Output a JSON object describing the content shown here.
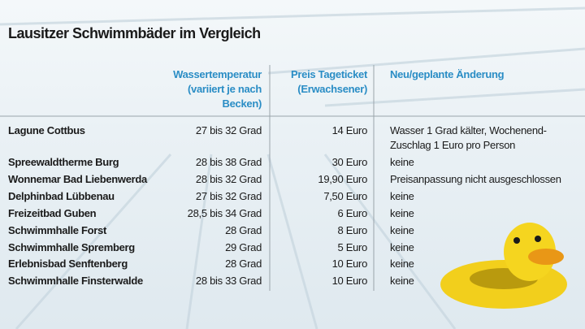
{
  "title": "Lausitzer Schwimmbäder im Vergleich",
  "table": {
    "header": [
      {
        "lines": [
          "Wassertemperatur",
          "(variiert je nach",
          "Becken)"
        ]
      },
      {
        "lines": [
          "Preis Tageticket",
          "(Erwachsener)"
        ]
      },
      {
        "lines": [
          "Neu/geplante Änderung"
        ]
      }
    ],
    "rows": [
      {
        "name": "Lagune Cottbus",
        "temperature": "27 bis 32 Grad",
        "price": "14 Euro",
        "change": [
          "Wasser 1 Grad kälter, Wochenend-",
          "Zuschlag 1 Euro pro Person"
        ]
      },
      {
        "name": "Spreewaldtherme Burg",
        "temperature": "28 bis 38 Grad",
        "price": "30 Euro",
        "change": [
          "keine"
        ]
      },
      {
        "name": "Wonnemar Bad Liebenwerda",
        "temperature": "28 bis 32 Grad",
        "price": "19,90 Euro",
        "change": [
          "Preisanpassung  nicht ausgeschlossen"
        ]
      },
      {
        "name": "Delphinbad Lübbenau",
        "temperature": "27 bis 32 Grad",
        "price": "7,50 Euro",
        "change": [
          "keine"
        ]
      },
      {
        "name": "Freizeitbad Guben",
        "temperature": "28,5 bis 34 Grad",
        "price": "6 Euro",
        "change": [
          "keine"
        ]
      },
      {
        "name": "Schwimmhalle Forst",
        "temperature": "28 Grad",
        "price": "8 Euro",
        "change": [
          "keine"
        ]
      },
      {
        "name": "Schwimmhalle Spremberg",
        "temperature": "29 Grad",
        "price": "5 Euro",
        "change": [
          "keine"
        ]
      },
      {
        "name": "Erlebnisbad Senftenberg",
        "temperature": "28 Grad",
        "price": "10 Euro",
        "change": [
          "keine"
        ]
      },
      {
        "name": "Schwimmhalle Finsterwalde",
        "temperature": "28 bis 33 Grad",
        "price": "10 Euro",
        "change": [
          "keine"
        ]
      }
    ]
  }
}
